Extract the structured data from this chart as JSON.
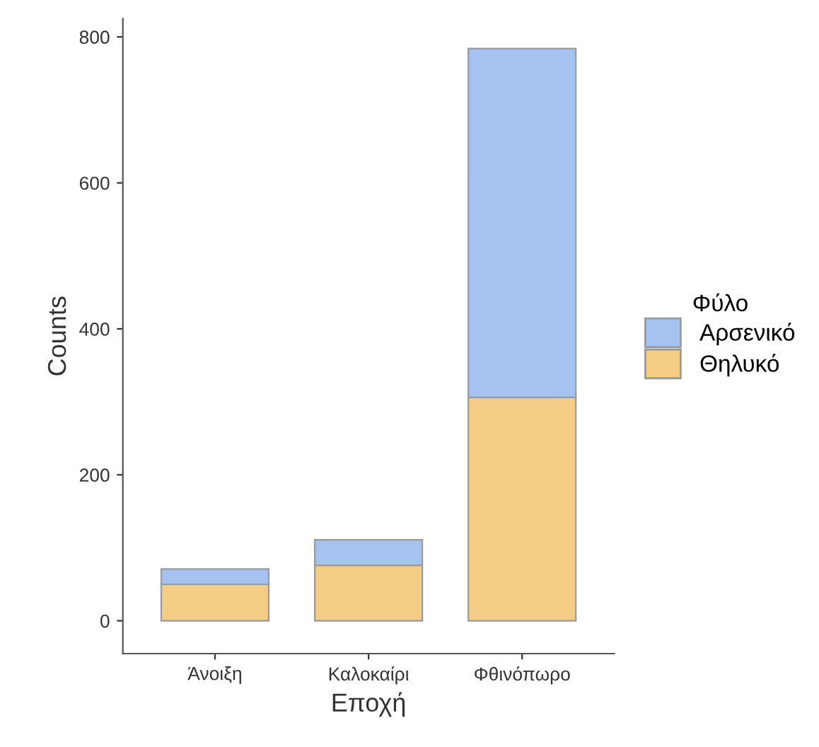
{
  "chart_data": {
    "type": "bar",
    "stacked": true,
    "xlabel": "Εποχή",
    "ylabel": "Counts",
    "legend_title": "Φύλο",
    "legend": "right",
    "categories": [
      "Άνοιξη",
      "Καλοκαίρι",
      "Φθινόπωρο"
    ],
    "series": [
      {
        "name": "Θηλυκό",
        "color": "#f3cd86",
        "values": [
          50,
          76,
          306
        ]
      },
      {
        "name": "Αρσενικό",
        "color": "#a5c2f0",
        "values": [
          21,
          35,
          478
        ]
      }
    ],
    "ylim": [
      -45,
      825
    ],
    "yticks": [
      0,
      200,
      400,
      600,
      800
    ],
    "grid": false
  }
}
